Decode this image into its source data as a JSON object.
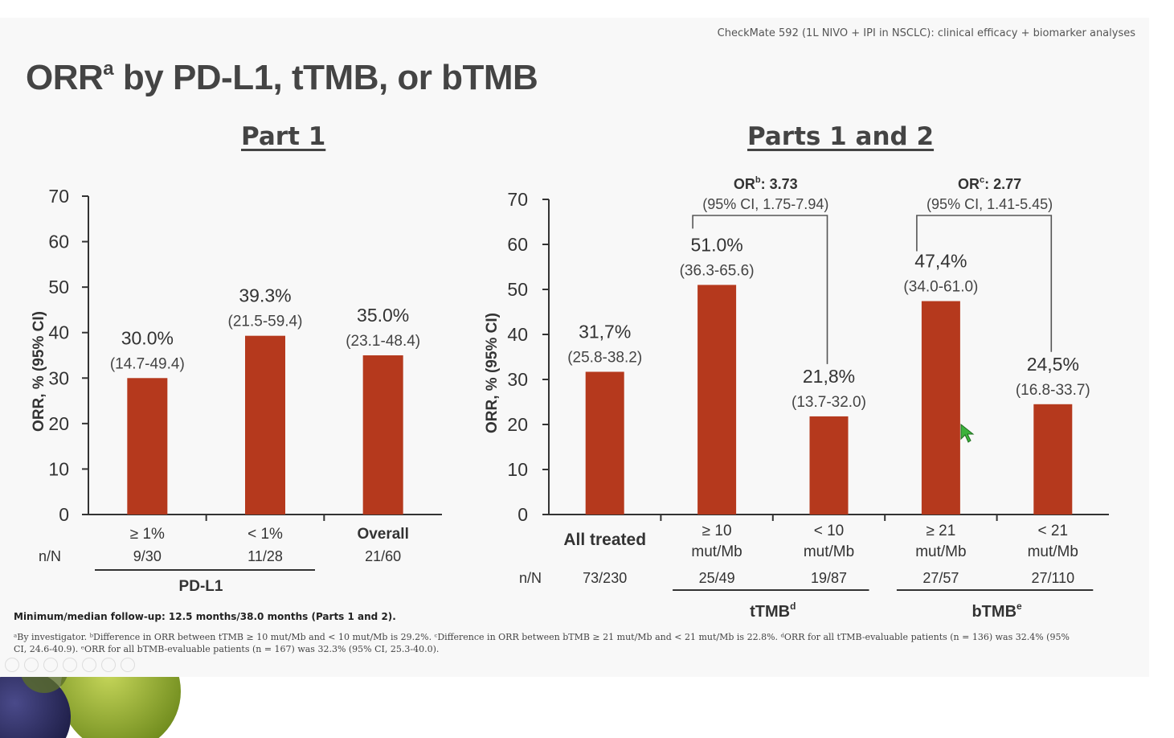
{
  "header": {
    "note": "CheckMate 592 (1L NIVO + IPI in NSCLC): clinical efficacy + biomarker analyses",
    "title_main": "ORR",
    "title_sup": "a",
    "title_rest": " by PD-L1, tTMB, or bTMB"
  },
  "colors": {
    "bar": "#b5391d",
    "axis": "#333333"
  },
  "chart_data": [
    {
      "type": "bar",
      "panel_title": "Part 1",
      "ylabel": "ORR, % (95% CI)",
      "ylim": [
        0,
        70
      ],
      "yticks": [
        "0",
        "10",
        "20",
        "30",
        "40",
        "50",
        "60",
        "70"
      ],
      "categories": [
        "≥ 1%",
        "< 1%",
        "Overall"
      ],
      "values": [
        30.0,
        39.3,
        35.0
      ],
      "value_labels": [
        "30.0%",
        "39.3%",
        "35.0%"
      ],
      "ci_labels": [
        "(14.7-49.4)",
        "(21.5-59.4)",
        "(23.1-48.4)"
      ],
      "nN_label": "n/N",
      "nN": [
        "9/30",
        "11/28",
        "21/60"
      ],
      "group_label": "PD-L1"
    },
    {
      "type": "bar",
      "panel_title": "Parts 1 and 2",
      "ylabel": "ORR, % (95% CI)",
      "ylim": [
        0,
        70
      ],
      "yticks": [
        "0",
        "10",
        "20",
        "30",
        "40",
        "50",
        "60",
        "70"
      ],
      "categories": [
        "All treated",
        "≥ 10 mut/Mb",
        "< 10 mut/Mb",
        "≥ 21 mut/Mb",
        "< 21 mut/Mb"
      ],
      "category_lines": [
        [
          "All treated"
        ],
        [
          "≥ 10",
          "mut/Mb"
        ],
        [
          "< 10",
          "mut/Mb"
        ],
        [
          "≥ 21",
          "mut/Mb"
        ],
        [
          "< 21",
          "mut/Mb"
        ]
      ],
      "values": [
        31.7,
        51.0,
        21.8,
        47.4,
        24.5
      ],
      "value_labels": [
        "31,7%",
        "51.0%",
        "21,8%",
        "47,4%",
        "24,5%"
      ],
      "ci_labels": [
        "(25.8-38.2)",
        "(36.3-65.6)",
        "(13.7-32.0)",
        "(34.0-61.0)",
        "(16.8-33.7)"
      ],
      "nN_label": "n/N",
      "nN": [
        "73/230",
        "25/49",
        "19/87",
        "27/57",
        "27/110"
      ],
      "groups": [
        {
          "label": "tTMB",
          "sup": "d"
        },
        {
          "label": "bTMB",
          "sup": "e"
        }
      ],
      "comparisons": [
        {
          "or_label": "OR",
          "sup": "b",
          "value": ": 3.73",
          "ci": "(95% CI, 1.75-7.94)"
        },
        {
          "or_label": "OR",
          "sup": "c",
          "value": ": 2.77",
          "ci": "(95% CI, 1.41-5.45)"
        }
      ]
    }
  ],
  "footer": {
    "follow_up": "Minimum/median follow-up: 12.5 months/38.0 months (Parts 1 and 2).",
    "footnote": "ᵃBy investigator. ᵇDifference in ORR between tTMB ≥ 10 mut/Mb and < 10 mut/Mb is 29.2%. ᶜDifference in ORR between bTMB ≥ 21 mut/Mb and < 21 mut/Mb is 22.8%. ᵈORR for all tTMB-evaluable patients (n = 136) was 32.4% (95% CI, 24.6-40.9). ᵉORR for all bTMB-evaluable patients (n = 167) was 32.3% (95% CI, 25.3-40.0)."
  }
}
